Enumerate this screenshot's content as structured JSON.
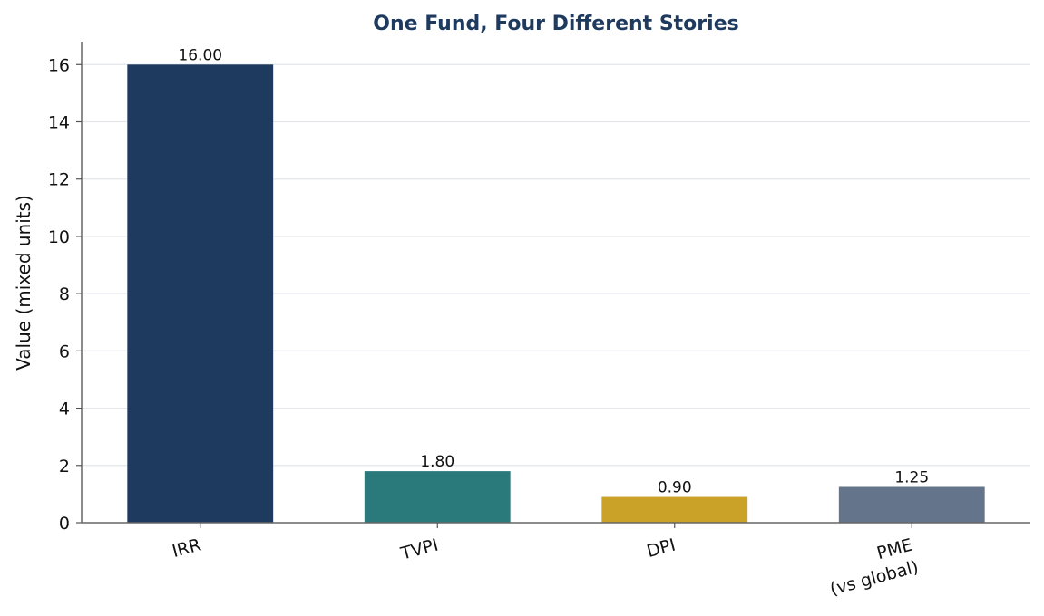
{
  "chart_data": {
    "type": "bar",
    "title": "One Fund, Four Different Stories",
    "xlabel": "",
    "ylabel": "Value (mixed units)",
    "categories": [
      [
        "IRR"
      ],
      [
        "TVPI"
      ],
      [
        "DPI"
      ],
      [
        "PME",
        "(vs global)"
      ]
    ],
    "values": [
      16.0,
      1.8,
      0.9,
      1.25
    ],
    "value_labels": [
      "16.00",
      "1.80",
      "0.90",
      "1.25"
    ],
    "colors": [
      "#1f3a5f",
      "#2a7a7b",
      "#c9a227",
      "#64748b"
    ],
    "ylim": [
      0,
      16.8
    ],
    "yticks": [
      0,
      2,
      4,
      6,
      8,
      10,
      12,
      14,
      16
    ],
    "grid": true,
    "title_color": "#1f3a5f"
  }
}
